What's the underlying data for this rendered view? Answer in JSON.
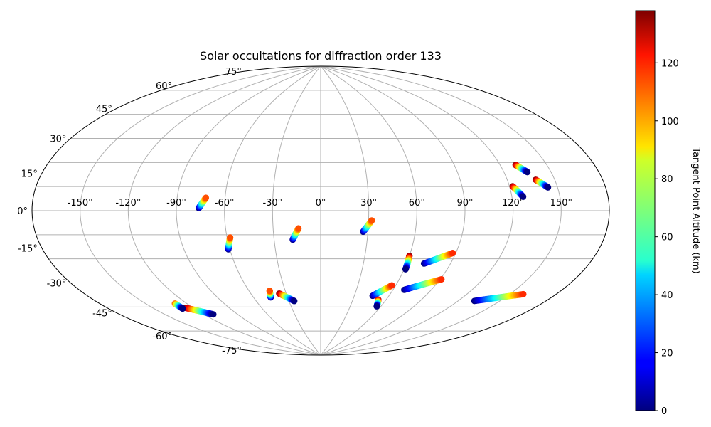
{
  "chart_data": {
    "type": "scatter",
    "projection": "aitoff",
    "title": "Solar occultations for diffraction order 133",
    "grid": true,
    "longitude_ticks": [
      -150,
      -120,
      -90,
      -60,
      -30,
      0,
      30,
      60,
      90,
      120,
      150
    ],
    "longitude_tick_labels": [
      "-150°",
      "-120°",
      "-90°",
      "-60°",
      "-30°",
      "0°",
      "30°",
      "60°",
      "90°",
      "120°",
      "150°"
    ],
    "latitude_ticks": [
      -75,
      -60,
      -45,
      -30,
      -15,
      0,
      15,
      30,
      45,
      60,
      75
    ],
    "latitude_tick_labels": [
      "-75°",
      "-60°",
      "-45°",
      "-30°",
      "-15°",
      "0°",
      "15°",
      "30°",
      "45°",
      "60°",
      "75°"
    ],
    "colorbar": {
      "label": "Tangent Point Altitude (km)",
      "colormap": "jet",
      "range": [
        0,
        138
      ],
      "ticks": [
        0,
        20,
        40,
        60,
        80,
        100,
        120
      ],
      "tick_labels": [
        "0",
        "20",
        "40",
        "60",
        "80",
        "100",
        "120"
      ]
    },
    "series": [
      {
        "lon_start": -76,
        "lat_start": 1.5,
        "lon_end": -72,
        "lat_end": 7.5,
        "alt_start": 0,
        "alt_end": 110
      },
      {
        "lon_start": -61,
        "lat_start": -23,
        "lon_end": -58,
        "lat_end": -16,
        "alt_start": 0,
        "alt_end": 110
      },
      {
        "lon_start": -18,
        "lat_start": -18,
        "lon_end": -14,
        "lat_end": -11,
        "alt_start": 0,
        "alt_end": 110
      },
      {
        "lon_start": 27,
        "lat_start": -13,
        "lon_end": 32,
        "lat_end": -6,
        "alt_start": 0,
        "alt_end": 110
      },
      {
        "lon_start": 60,
        "lat_start": -27,
        "lon_end": 61,
        "lat_end": -35,
        "alt_start": 138,
        "alt_end": 0
      },
      {
        "lon_start": 72,
        "lat_start": -31,
        "lon_end": 88,
        "lat_end": -24,
        "alt_start": 0,
        "alt_end": 115
      },
      {
        "lon_start": 69,
        "lat_start": -47,
        "lon_end": 91,
        "lat_end": -39,
        "alt_start": 0,
        "alt_end": 115
      },
      {
        "lon_start": 132,
        "lat_start": -47,
        "lon_end": 159,
        "lat_end": -39,
        "alt_start": 0,
        "alt_end": 115
      },
      {
        "lon_start": 46,
        "lat_start": -52,
        "lon_end": 57,
        "lat_end": -45,
        "alt_start": 0,
        "alt_end": 115
      },
      {
        "lon_start": 53,
        "lat_start": -54,
        "lon_end": 56,
        "lat_end": -58,
        "alt_start": 138,
        "alt_end": 0
      },
      {
        "lon_start": -45,
        "lat_start": -53,
        "lon_end": -43,
        "lat_end": -49,
        "alt_start": 0,
        "alt_end": 110
      },
      {
        "lon_start": -36,
        "lat_start": -51,
        "lon_end": -25,
        "lat_end": -56,
        "alt_start": 138,
        "alt_end": 0
      },
      {
        "lon_start": -126,
        "lat_start": -52,
        "lon_end": -112,
        "lat_end": -58,
        "alt_start": 138,
        "alt_end": 0
      },
      {
        "lon_start": -129,
        "lat_start": -49,
        "lon_end": -129,
        "lat_end": -52,
        "alt_start": 110,
        "alt_end": 0
      },
      {
        "lon_start": 130,
        "lat_start": 23,
        "lon_end": 135,
        "lat_end": 19,
        "alt_start": 138,
        "alt_end": 0
      },
      {
        "lon_start": 122,
        "lat_start": 12.5,
        "lon_end": 127,
        "lat_end": 7,
        "alt_start": 138,
        "alt_end": 0
      },
      {
        "lon_start": 138,
        "lat_start": 15,
        "lon_end": 144,
        "lat_end": 11,
        "alt_start": 138,
        "alt_end": 0
      }
    ]
  }
}
